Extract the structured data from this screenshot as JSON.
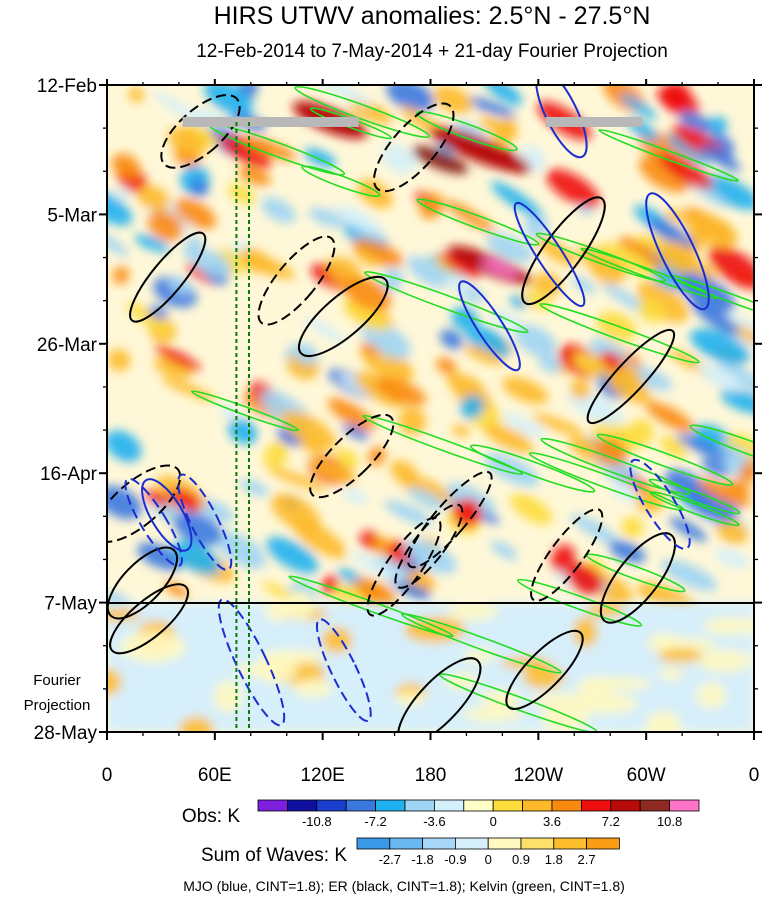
{
  "chart_data": {
    "type": "heatmap",
    "title": "HIRS UTWV anomalies: 2.5°N - 27.5°N",
    "subtitle": "12-Feb-2014 to 7-May-2014 + 21-day Fourier Projection",
    "x_ticks": [
      "0",
      "60E",
      "120E",
      "180",
      "120W",
      "60W",
      "0"
    ],
    "x_tick_lon": [
      0,
      60,
      120,
      180,
      240,
      300,
      360
    ],
    "y_ticks": [
      "12-Feb",
      "5-Mar",
      "26-Mar",
      "16-Apr",
      "7-May",
      "28-May"
    ],
    "y_tick_day": [
      0,
      21,
      42,
      63,
      84,
      105
    ],
    "obs_end_day": 84,
    "projection_label_line1": "Fourier",
    "projection_label_line2": "Projection",
    "reference_lon": [
      72,
      79
    ],
    "missing_segments": [
      {
        "lon_start": 42,
        "lon_end": 140,
        "day": 6
      },
      {
        "lon_start": 244,
        "lon_end": 298,
        "day": 6
      }
    ],
    "obs_legend": {
      "label": "Obs: K",
      "levels": [
        "-10.8",
        "-7.2",
        "-3.6",
        "0",
        "3.6",
        "7.2",
        "10.8"
      ],
      "colors": [
        "#7f1fe0",
        "#1010a0",
        "#1a3fcf",
        "#3a78e0",
        "#1fb0f0",
        "#9ed4f4",
        "#d4f0fa",
        "#ffffc8",
        "#fddc3c",
        "#fdb92a",
        "#f98a10",
        "#ee1010",
        "#b80a0a",
        "#8f2a22",
        "#ff73c8"
      ]
    },
    "waves_legend": {
      "label": "Sum of Waves: K",
      "levels": [
        "-2.7",
        "-1.8",
        "-0.9",
        "0",
        "0.9",
        "1.8",
        "2.7"
      ],
      "colors": [
        "#3a9ae8",
        "#6ab8f0",
        "#a8d6f6",
        "#d6effb",
        "#fff8c0",
        "#fde06a",
        "#fdbe2e",
        "#f99e14"
      ]
    },
    "footer": "MJO (blue, CINT=1.8); ER (black, CINT=1.8); Kelvin (green, CINT=1.8)"
  }
}
